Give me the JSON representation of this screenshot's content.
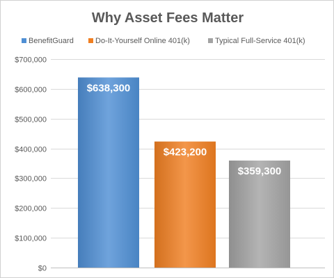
{
  "chart_data": {
    "type": "bar",
    "title": "Why Asset Fees Matter",
    "xlabel": "",
    "ylabel": "",
    "ylim": [
      0,
      700000
    ],
    "yticks": [
      0,
      100000,
      200000,
      300000,
      400000,
      500000,
      600000,
      700000
    ],
    "ytick_labels": [
      "$0",
      "$100,000",
      "$200,000",
      "$300,000",
      "$400,000",
      "$500,000",
      "$600,000",
      "$700,000"
    ],
    "grid": true,
    "legend_position": "top",
    "series": [
      {
        "name": "BenefitGuard",
        "value": 638300,
        "label": "$638,300",
        "color": "#4f8fd4"
      },
      {
        "name": "Do-It-Yourself Online 401(k)",
        "value": 423200,
        "label": "$423,200",
        "color": "#f07f22"
      },
      {
        "name": "Typical Full-Service 401(k)",
        "value": 359300,
        "label": "$359,300",
        "color": "#a3a3a3"
      }
    ]
  }
}
